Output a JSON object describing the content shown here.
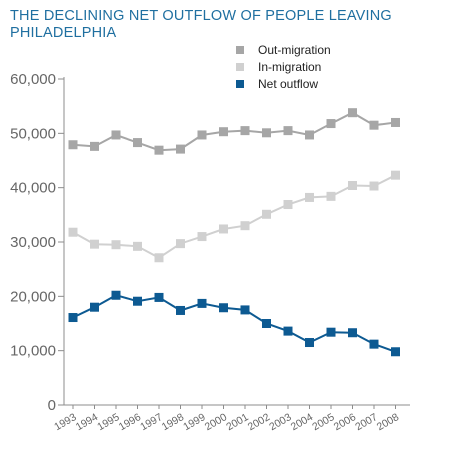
{
  "chart_data": {
    "type": "line",
    "title": "THE DECLINING NET OUTFLOW OF PEOPLE LEAVING PHILADELPHIA",
    "categories": [
      "1993",
      "1994",
      "1995",
      "1996",
      "1997",
      "1998",
      "1999",
      "2000",
      "2001",
      "2002",
      "2003",
      "2004",
      "2005",
      "2006",
      "2007",
      "2008"
    ],
    "series": [
      {
        "name": "Out-migration",
        "color": "#a6a6a6",
        "marker": "square",
        "values": [
          47900,
          47600,
          49700,
          48300,
          46900,
          47100,
          49700,
          50300,
          50500,
          50100,
          50500,
          49700,
          51800,
          53800,
          51500,
          52000
        ]
      },
      {
        "name": "In-migration",
        "color": "#d0d0d0",
        "marker": "square",
        "values": [
          31800,
          29600,
          29500,
          29200,
          27100,
          29700,
          31000,
          32400,
          33000,
          35100,
          36900,
          38200,
          38400,
          40400,
          40300,
          42300
        ]
      },
      {
        "name": "Net outflow",
        "color": "#0d5a92",
        "marker": "square",
        "values": [
          16100,
          18000,
          20200,
          19100,
          19800,
          17400,
          18700,
          17900,
          17500,
          15000,
          13600,
          11500,
          13400,
          13300,
          11200,
          9800
        ]
      }
    ],
    "yticks": [
      "0",
      "10,000",
      "20,000",
      "30,000",
      "40,000",
      "50,000",
      "60,000"
    ],
    "ylim": [
      0,
      60000
    ],
    "legend_position": "top-right",
    "grid": false
  }
}
